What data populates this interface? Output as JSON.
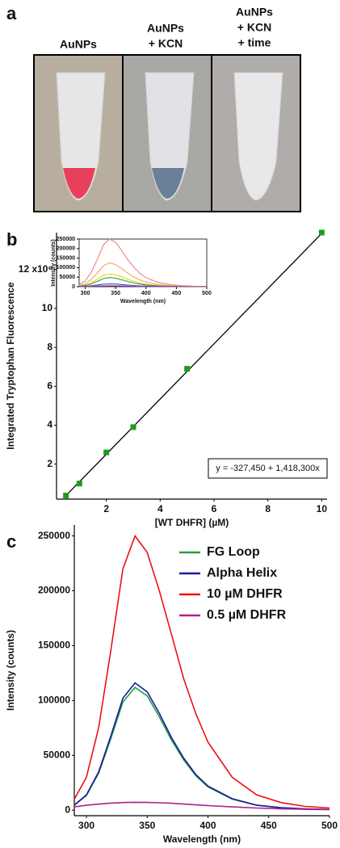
{
  "panel_a": {
    "label": "a",
    "captions": [
      [
        "AuNPs"
      ],
      [
        "AuNPs",
        "+ KCN"
      ],
      [
        "AuNPs",
        "+ KCN",
        "+ time"
      ]
    ]
  },
  "chart_data": [
    {
      "type": "scatter",
      "panel_label": "b",
      "x_label": "[WT DHFR] (µM)",
      "y_label": "Integrated Tryptophan Fluorescence",
      "equation": "y = -327,450 + 1,418,300x",
      "x": [
        0.5,
        1,
        2,
        3,
        5,
        10
      ],
      "values": [
        0.38,
        1.0,
        2.6,
        3.9,
        6.9,
        13.9
      ],
      "color": "#1a9e1a",
      "fit_line": {
        "x": [
          0.5,
          10
        ],
        "values": [
          0.382,
          13.856
        ],
        "color": "#000000"
      },
      "xlim": [
        0.15,
        10.2
      ],
      "xticks": [
        2,
        4,
        6,
        8,
        10
      ],
      "ylim": [
        0.2,
        13.9
      ],
      "yticks": [
        2,
        4,
        6,
        8,
        10,
        {
          "value": 12,
          "label": "12 x10⁶"
        }
      ]
    },
    {
      "type": "line",
      "x_label": "Wavelength (nm)",
      "y_label": "Intensity (counts)",
      "x": [
        290,
        300,
        310,
        320,
        330,
        340,
        350,
        360,
        370,
        380,
        390,
        400,
        420,
        440,
        460,
        480,
        500
      ],
      "series": [
        {
          "color": "#f08080",
          "values": [
            10000,
            30000,
            75000,
            145000,
            220000,
            250000,
            232500,
            190000,
            142500,
            102500,
            70000,
            47500,
            22500,
            10000,
            5000,
            2500,
            1500
          ]
        },
        {
          "color": "#f4a460",
          "values": [
            5000,
            15000,
            37500,
            72500,
            110000,
            125000,
            116250,
            95000,
            71250,
            51250,
            35000,
            23750,
            11250,
            5000,
            2500,
            1250,
            750
          ]
        },
        {
          "color": "#e6d200",
          "values": [
            2720,
            8160,
            20400,
            39440,
            59840,
            68000,
            63240,
            51680,
            38760,
            27880,
            19040,
            12920,
            6120,
            2720,
            1360,
            680,
            408
          ]
        },
        {
          "color": "#22a050",
          "values": [
            1920,
            5760,
            14400,
            27840,
            42240,
            48000,
            44640,
            36480,
            27360,
            19680,
            13440,
            9120,
            4320,
            1920,
            960,
            480,
            288
          ]
        },
        {
          "color": "#4040d0",
          "values": [
            600,
            1800,
            4500,
            8700,
            13200,
            15000,
            13950,
            11400,
            8550,
            6150,
            4200,
            2850,
            1350,
            600,
            300,
            150,
            90
          ]
        },
        {
          "color": "#9040a0",
          "values": [
            200,
            600,
            1500,
            2900,
            4400,
            5000,
            4650,
            3800,
            2850,
            2050,
            1400,
            950,
            450,
            200,
            100,
            50,
            30
          ]
        }
      ],
      "xlim": [
        290,
        500
      ],
      "xticks": [
        300,
        350,
        400,
        450,
        500
      ],
      "ylim": [
        0,
        250000
      ],
      "yticks": [
        0,
        50000,
        100000,
        150000,
        200000,
        250000
      ]
    },
    {
      "type": "line",
      "panel_label": "c",
      "x_label": "Wavelength (nm)",
      "y_label": "Intensity (counts)",
      "legend": "top right",
      "x": [
        290,
        300,
        310,
        320,
        330,
        340,
        350,
        360,
        370,
        380,
        390,
        400,
        420,
        440,
        460,
        480,
        500
      ],
      "series": [
        {
          "name": "FG Loop",
          "color": "#22a040",
          "values": [
            4480,
            13440,
            33600,
            64960,
            98560,
            112000,
            104160,
            85120,
            63840,
            45920,
            31360,
            21280,
            10080,
            4480,
            2240,
            1120,
            672
          ]
        },
        {
          "name": "Alpha Helix",
          "color": "#1a1aa0",
          "values": [
            4640,
            13920,
            34800,
            67280,
            102080,
            116000,
            107880,
            88160,
            66120,
            47560,
            32480,
            22040,
            10440,
            4640,
            2320,
            1160,
            696
          ]
        },
        {
          "name": "10 µM DHFR",
          "color": "#ee1111",
          "values": [
            10000,
            30000,
            75000,
            145000,
            220000,
            250000,
            235000,
            200000,
            160000,
            120000,
            88000,
            62000,
            30000,
            14000,
            7000,
            3500,
            2000
          ]
        },
        {
          "name": "0.5 µM DHFR",
          "color": "#b0208a",
          "values": [
            3000,
            4500,
            5500,
            6500,
            7000,
            7200,
            7100,
            6800,
            6300,
            5600,
            4900,
            4200,
            3000,
            2000,
            1300,
            800,
            500
          ]
        }
      ],
      "xlim": [
        290,
        500
      ],
      "xticks": [
        300,
        350,
        400,
        450,
        500
      ],
      "ylim": [
        -5000,
        260000
      ],
      "yticks": [
        0,
        50000,
        100000,
        150000,
        200000,
        250000
      ]
    }
  ]
}
